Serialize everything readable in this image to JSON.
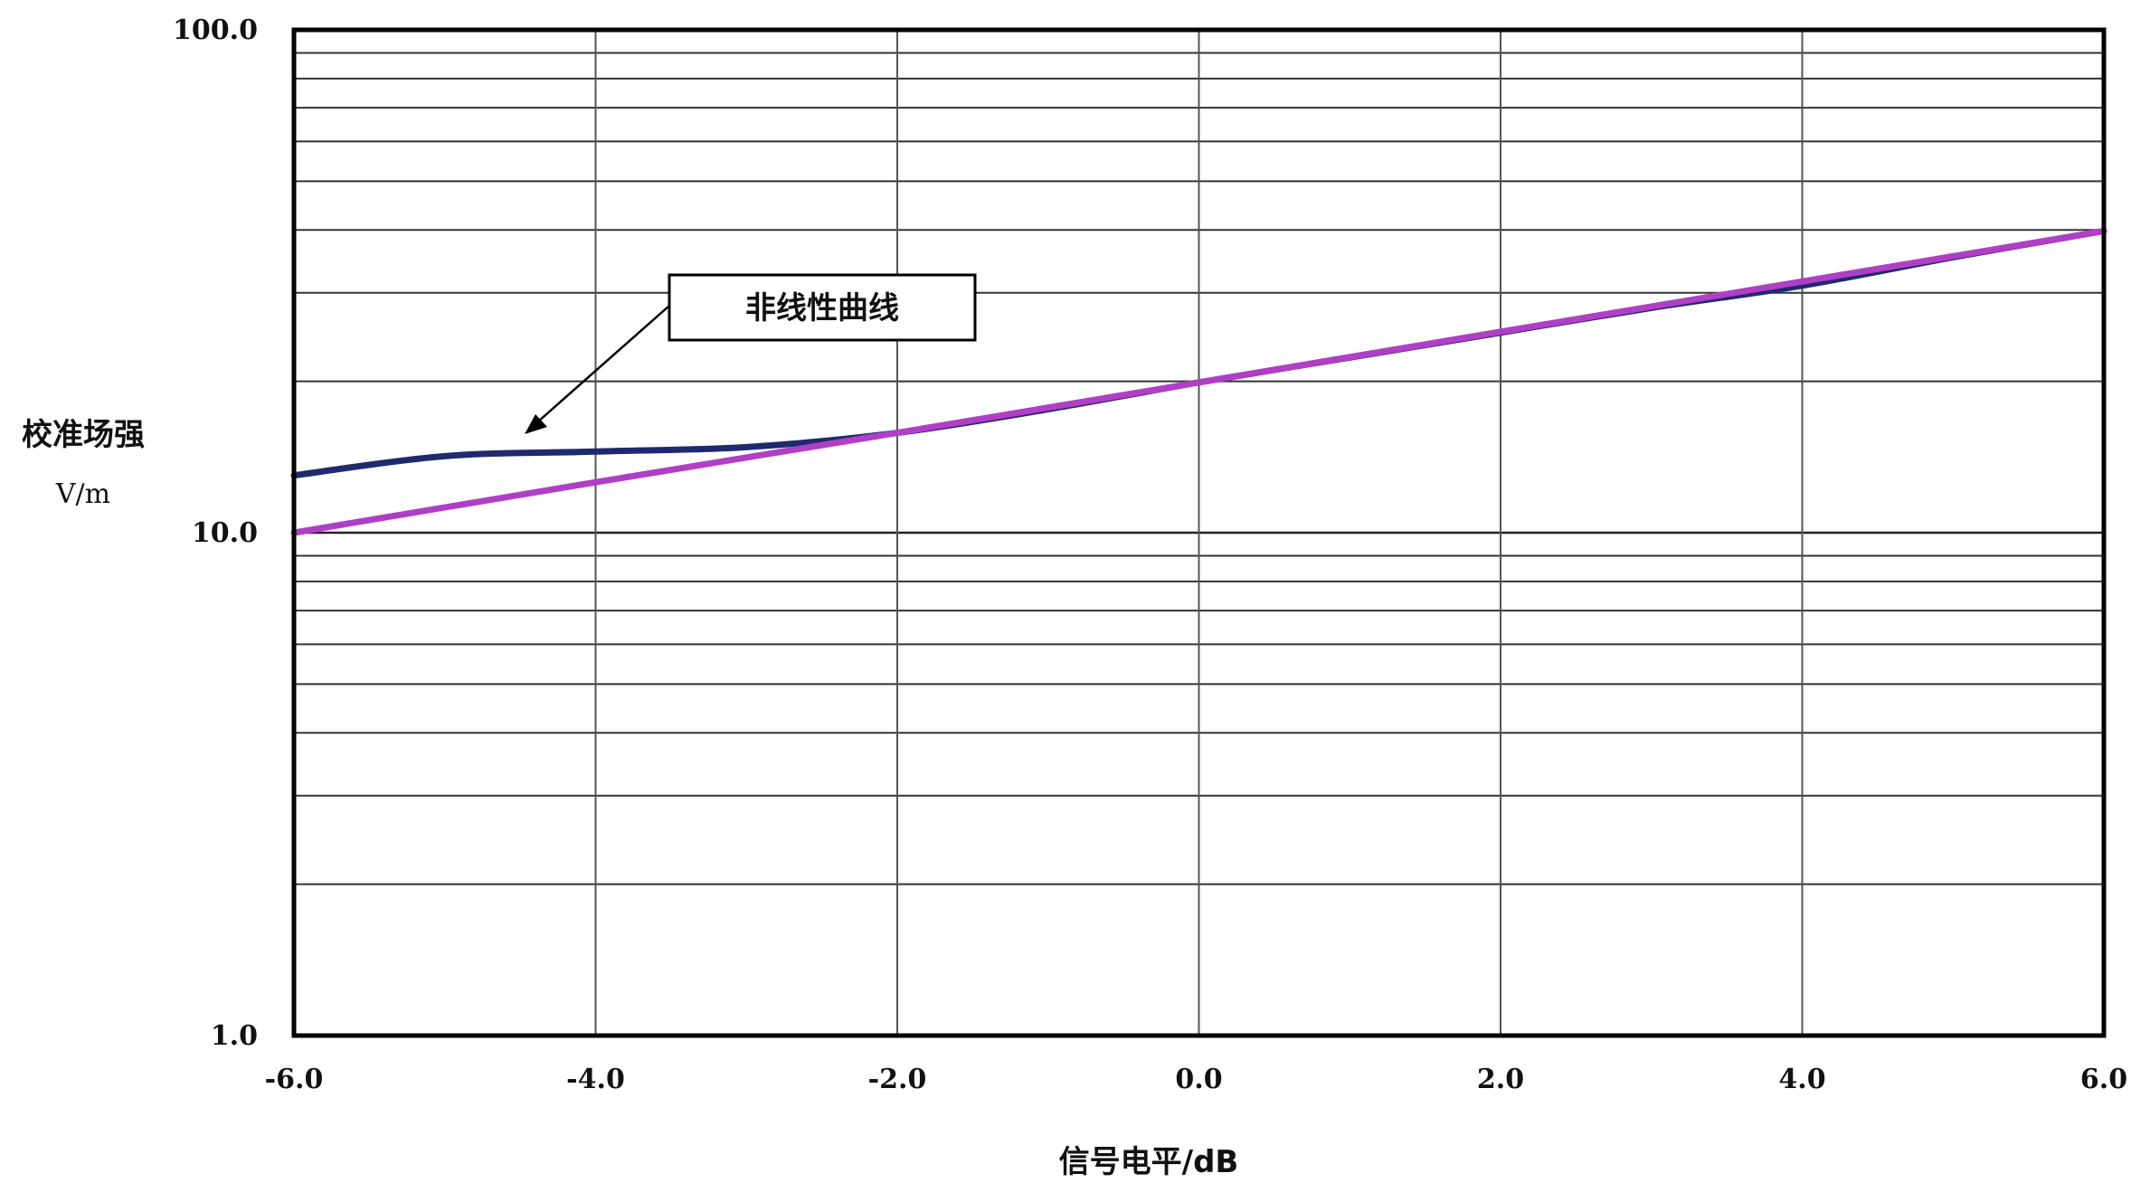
{
  "chart_data": {
    "type": "line",
    "xlabel": "信号电平/dB",
    "ylabel": "校准场强",
    "yunit": "V/m",
    "xlim": [
      -6.0,
      6.0
    ],
    "ylim": [
      1.0,
      100.0
    ],
    "yscale": "log",
    "grid": true,
    "x_ticks": [
      "-6.0",
      "-4.0",
      "-2.0",
      "0.0",
      "2.0",
      "4.0",
      "6.0"
    ],
    "y_ticks": [
      "1.0",
      "10.0",
      "100.0"
    ],
    "annotations": [
      {
        "text": "非线性曲线",
        "points_to": "nonlinear"
      }
    ],
    "series": [
      {
        "id": "nonlinear",
        "color": "#1f2a6e",
        "points": [
          [
            -6.0,
            13.0
          ],
          [
            -5.0,
            14.2
          ],
          [
            -4.0,
            14.5
          ],
          [
            -3.0,
            14.8
          ],
          [
            -2.0,
            15.8
          ],
          [
            -1.0,
            17.6
          ],
          [
            0.0,
            19.9
          ],
          [
            1.0,
            22.3
          ],
          [
            2.0,
            25.0
          ],
          [
            3.0,
            28.0
          ],
          [
            4.0,
            31.0
          ],
          [
            5.0,
            35.3
          ],
          [
            6.0,
            39.8
          ]
        ]
      },
      {
        "id": "linear",
        "color": "#b03fc6",
        "points": [
          [
            -6.0,
            10.0
          ],
          [
            -4.0,
            12.6
          ],
          [
            -2.0,
            15.8
          ],
          [
            0.0,
            19.9
          ],
          [
            2.0,
            25.1
          ],
          [
            4.0,
            31.6
          ],
          [
            6.0,
            39.8
          ]
        ]
      }
    ]
  }
}
